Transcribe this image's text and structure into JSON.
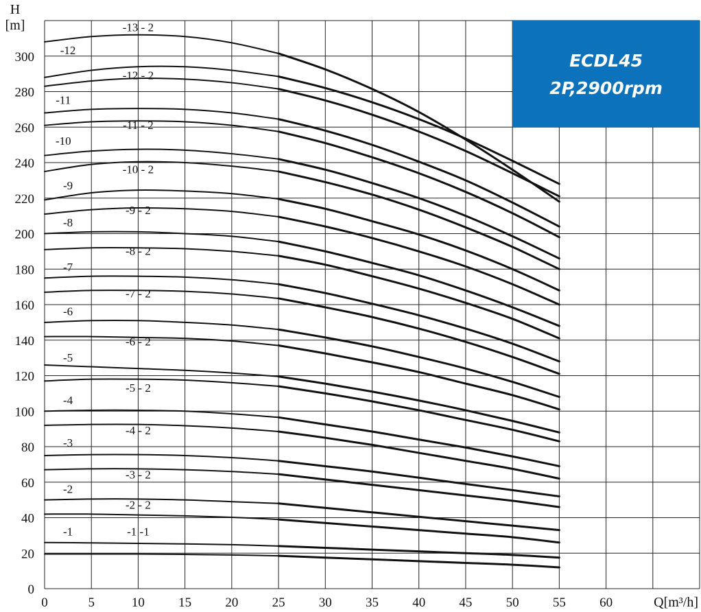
{
  "chart_data": {
    "type": "line",
    "xlabel": "Q[m³/h]",
    "ylabel_line1": "H",
    "ylabel_line2": "[m]",
    "xlim": [
      0,
      70
    ],
    "ylim": [
      0,
      320
    ],
    "grid": true,
    "x_ticks": [
      0,
      5,
      10,
      15,
      20,
      25,
      30,
      35,
      40,
      45,
      50,
      55,
      60
    ],
    "y_ticks": [
      0,
      20,
      40,
      60,
      80,
      100,
      120,
      140,
      160,
      180,
      200,
      220,
      240,
      260,
      280,
      300
    ],
    "series_x": [
      0,
      5,
      10,
      15,
      20,
      25,
      30,
      35,
      40,
      45,
      50,
      55
    ],
    "series": [
      {
        "name": "-1 -1",
        "values": [
          19.5,
          19.5,
          19.5,
          19.3,
          19.0,
          18.5,
          17.5,
          16.5,
          15.5,
          14.5,
          13.5,
          12.0
        ]
      },
      {
        "name": "-1",
        "values": [
          26,
          25.8,
          25.5,
          25.2,
          24.8,
          24.0,
          23.0,
          22.0,
          21.0,
          20.0,
          19.0,
          17.5
        ]
      },
      {
        "name": "-2 - 2",
        "values": [
          42,
          42,
          41.5,
          41.0,
          40.2,
          39.0,
          37.0,
          35.0,
          33.0,
          31.0,
          29.0,
          26.0
        ]
      },
      {
        "name": "-2",
        "values": [
          50,
          50.5,
          50.5,
          50.0,
          49.0,
          48.0,
          45.5,
          43.0,
          40.5,
          38.0,
          35.5,
          33.0
        ]
      },
      {
        "name": "-3 - 2",
        "values": [
          67,
          67.5,
          67.5,
          67.0,
          66.0,
          64.5,
          61.5,
          58.5,
          55.5,
          52.5,
          49.5,
          46.0
        ]
      },
      {
        "name": "-3",
        "values": [
          75,
          75.5,
          75.5,
          75.0,
          73.8,
          72.0,
          69.0,
          66.0,
          62.5,
          59.0,
          55.5,
          52.0
        ]
      },
      {
        "name": "-4 - 2",
        "values": [
          92,
          92.5,
          92.5,
          91.8,
          90.5,
          88.5,
          85.0,
          81.0,
          76.5,
          72.0,
          67.5,
          62.0
        ]
      },
      {
        "name": "-4",
        "values": [
          100,
          100.5,
          100.5,
          100.0,
          98.5,
          96.5,
          92.5,
          88.5,
          84.0,
          79.5,
          74.5,
          69.0
        ]
      },
      {
        "name": "-5 - 2",
        "values": [
          117,
          118,
          118,
          117.5,
          116.0,
          114.0,
          110.0,
          105.5,
          100.5,
          95.0,
          89.5,
          83.0
        ]
      },
      {
        "name": "-5",
        "values": [
          126,
          125,
          124,
          123.0,
          121.5,
          119.5,
          115.5,
          111.0,
          106.0,
          100.5,
          94.5,
          88.0
        ]
      },
      {
        "name": "-6 - 2",
        "values": [
          142,
          142,
          141.5,
          141.0,
          139.5,
          137.0,
          132.5,
          127.5,
          122.0,
          115.5,
          109.0,
          101.0
        ]
      },
      {
        "name": "-6",
        "values": [
          150,
          151,
          151,
          150.0,
          148.5,
          146.0,
          141.5,
          136.5,
          130.5,
          124.0,
          116.5,
          108.0
        ]
      },
      {
        "name": "-7 - 2",
        "values": [
          167,
          168,
          168,
          167.5,
          166.0,
          163.5,
          158.5,
          153.0,
          146.5,
          139.0,
          130.5,
          121.0
        ]
      },
      {
        "name": "-7",
        "values": [
          175,
          176,
          176,
          175.5,
          174.0,
          171.5,
          166.5,
          160.5,
          154.0,
          146.5,
          138.0,
          128.0
        ]
      },
      {
        "name": "-8 - 2",
        "values": [
          191,
          192,
          192,
          191.5,
          190.0,
          187.5,
          182.5,
          176.0,
          169.0,
          161.0,
          152.0,
          141.0
        ]
      },
      {
        "name": "-8",
        "values": [
          200,
          201,
          201,
          200.0,
          198.5,
          195.5,
          190.0,
          183.5,
          176.5,
          168.0,
          158.5,
          148.0
        ]
      },
      {
        "name": "-9 - 2",
        "values": [
          211,
          213.5,
          214.5,
          214.0,
          212.5,
          209.5,
          204.0,
          197.5,
          190.0,
          181.5,
          171.5,
          160.0
        ]
      },
      {
        "name": "-9",
        "values": [
          219,
          223,
          224.5,
          224.0,
          222.5,
          219.5,
          214.0,
          207.0,
          199.5,
          190.5,
          180.0,
          168.0
        ]
      },
      {
        "name": "-10 - 2",
        "values": [
          235,
          239,
          240.5,
          240.0,
          238.0,
          235.0,
          229.0,
          222.0,
          213.5,
          203.5,
          192.5,
          180.0
        ]
      },
      {
        "name": "-10",
        "values": [
          244,
          246.5,
          247.5,
          247.0,
          245.0,
          242.0,
          236.0,
          228.5,
          220.0,
          210.0,
          198.5,
          186.0
        ]
      },
      {
        "name": "-11 - 2",
        "values": [
          261,
          263,
          263.5,
          263.0,
          261.0,
          257.5,
          251.0,
          243.0,
          234.0,
          223.5,
          211.5,
          198.0
        ]
      },
      {
        "name": "-11",
        "values": [
          268,
          270,
          270.5,
          270.0,
          268.0,
          264.5,
          258.0,
          250.0,
          240.5,
          230.0,
          217.5,
          204.0
        ]
      },
      {
        "name": "-12 - 2",
        "values": [
          283,
          286,
          287.5,
          287.0,
          285.0,
          281.5,
          275.0,
          267.0,
          257.5,
          246.5,
          234.0,
          221.0
        ]
      },
      {
        "name": "-12",
        "values": [
          288,
          292,
          294,
          294.0,
          292.0,
          288.5,
          282.0,
          274.0,
          264.5,
          253.5,
          241.0,
          228.0
        ]
      },
      {
        "name": "-13 - 2",
        "values": [
          308,
          311,
          312,
          311.0,
          307.5,
          301.5,
          292.5,
          281.5,
          268.5,
          253.0,
          236.0,
          218.0
        ]
      }
    ],
    "curve_labels": [
      {
        "text": "-13 - 2",
        "x": 10,
        "y": 314
      },
      {
        "text": "-12",
        "x": 2.5,
        "y": 301
      },
      {
        "text": "-12 - 2",
        "x": 10,
        "y": 287
      },
      {
        "text": "-11",
        "x": 2.0,
        "y": 273
      },
      {
        "text": "-11 - 2",
        "x": 10,
        "y": 259
      },
      {
        "text": "-10",
        "x": 2.0,
        "y": 250
      },
      {
        "text": "-10 - 2",
        "x": 10,
        "y": 234
      },
      {
        "text": "-9",
        "x": 2.5,
        "y": 225
      },
      {
        "text": "-9 - 2",
        "x": 10,
        "y": 211
      },
      {
        "text": "-8",
        "x": 2.5,
        "y": 204
      },
      {
        "text": "-8 - 2",
        "x": 10,
        "y": 188
      },
      {
        "text": "-7",
        "x": 2.5,
        "y": 179
      },
      {
        "text": "-7 - 2",
        "x": 10,
        "y": 164
      },
      {
        "text": "-6",
        "x": 2.5,
        "y": 154
      },
      {
        "text": "-6 - 2",
        "x": 10,
        "y": 137
      },
      {
        "text": "-5",
        "x": 2.5,
        "y": 128
      },
      {
        "text": "-5 - 2",
        "x": 10,
        "y": 111
      },
      {
        "text": "-4",
        "x": 2.5,
        "y": 104
      },
      {
        "text": "-4 - 2",
        "x": 10,
        "y": 87
      },
      {
        "text": "-3",
        "x": 2.5,
        "y": 80
      },
      {
        "text": "-3 - 2",
        "x": 10,
        "y": 62
      },
      {
        "text": "-2",
        "x": 2.5,
        "y": 54
      },
      {
        "text": "-2 - 2",
        "x": 10,
        "y": 45
      },
      {
        "text": "-1",
        "x": 2.5,
        "y": 30
      },
      {
        "text": "-1 -1",
        "x": 10,
        "y": 30
      }
    ],
    "badge": {
      "line1": "ECDL45",
      "line2": "2P,2900rpm",
      "color": "#0b72bb"
    }
  }
}
